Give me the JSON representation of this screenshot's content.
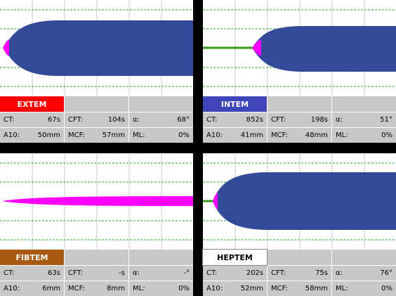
{
  "panels": [
    {
      "label": "EXTEM",
      "label_color": "#ff0000",
      "label_text_color": "#ffffff",
      "rows": [
        [
          [
            "CT:",
            "67s"
          ],
          [
            "CFT:",
            "104s"
          ],
          [
            "α:",
            "68°"
          ]
        ],
        [
          [
            "A10:",
            "50mm"
          ],
          [
            "MCF:",
            "57mm"
          ],
          [
            "ML:",
            "0%"
          ]
        ]
      ]
    },
    {
      "label": "INTEM",
      "label_color": "#4046b8",
      "label_text_color": "#ffffff",
      "rows": [
        [
          [
            "CT:",
            "852s"
          ],
          [
            "CFT:",
            "198s"
          ],
          [
            "α:",
            "51°"
          ]
        ],
        [
          [
            "A10:",
            "41mm"
          ],
          [
            "MCF:",
            "48mm"
          ],
          [
            "ML:",
            "0%"
          ]
        ]
      ]
    },
    {
      "label": "FIBTEM",
      "label_color": "#a85a10",
      "label_text_color": "#ffffff",
      "rows": [
        [
          [
            "CT:",
            "63s"
          ],
          [
            "CFT:",
            "-s"
          ],
          [
            "α:",
            "-°"
          ]
        ],
        [
          [
            "A10:",
            "6mm"
          ],
          [
            "MCF:",
            "8mm"
          ],
          [
            "ML:",
            "0%"
          ]
        ]
      ]
    },
    {
      "label": "HEPTEM",
      "label_color": "#ffffff",
      "label_text_color": "#000000",
      "rows": [
        [
          [
            "CT:",
            "202s"
          ],
          [
            "CFT:",
            "75s"
          ],
          [
            "α:",
            "76°"
          ]
        ],
        [
          [
            "A10:",
            "52mm"
          ],
          [
            "MCF:",
            "58mm"
          ],
          [
            "ML:",
            "0%"
          ]
        ]
      ]
    }
  ]
}
